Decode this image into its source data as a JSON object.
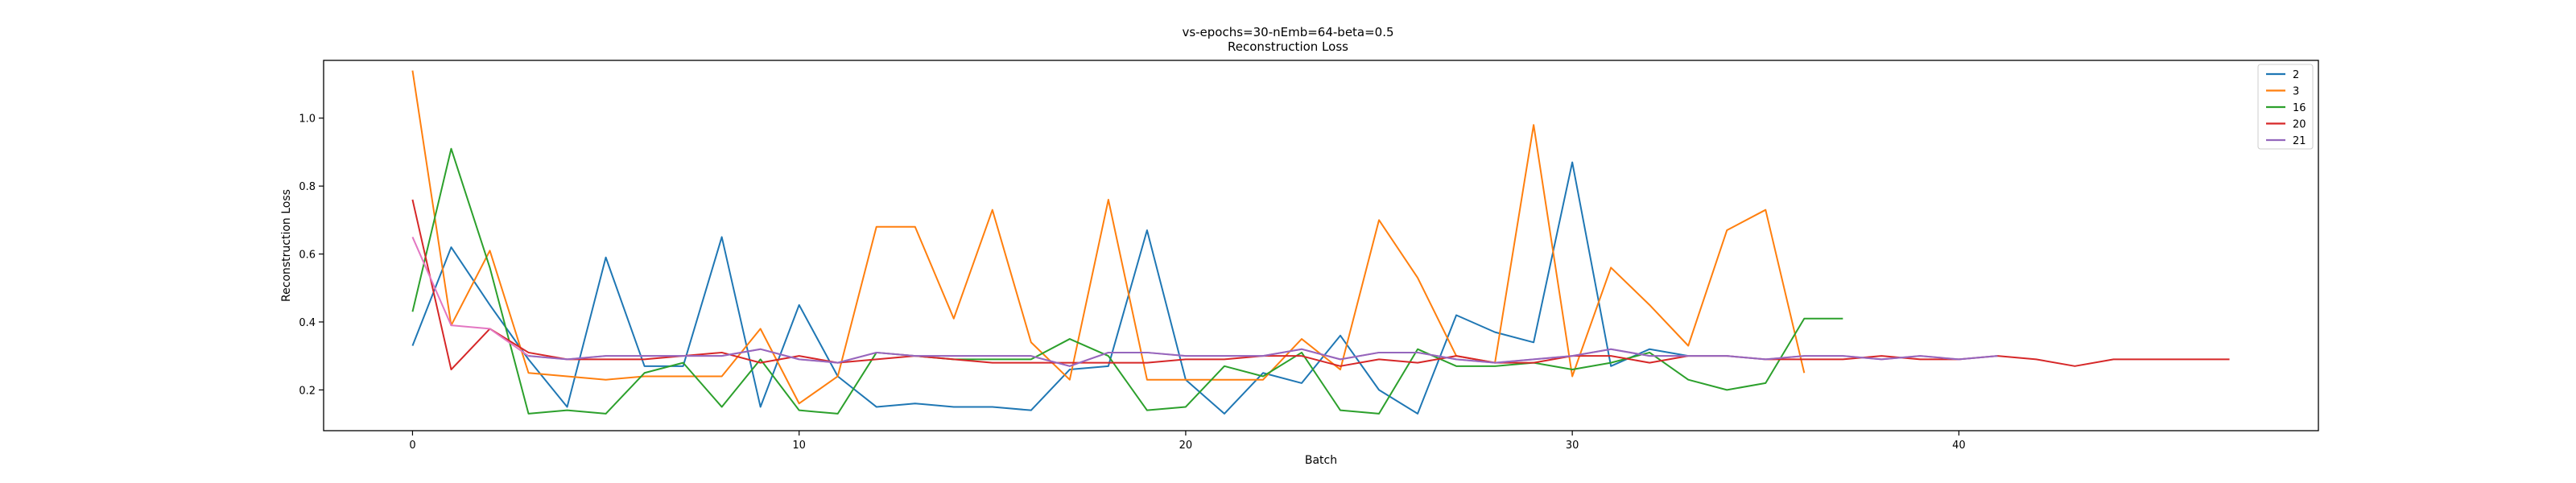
{
  "chart_data": {
    "type": "line",
    "title": "vs-epochs=30-nEmb=64-beta=0.5",
    "subtitle": "Reconstruction Loss",
    "xlabel": "Batch",
    "ylabel": "Reconstruction Loss",
    "xlim": [
      -2.3,
      49.3
    ],
    "ylim": [
      0.08,
      1.17
    ],
    "xticks": [
      0,
      10,
      20,
      30,
      40
    ],
    "yticks": [
      0.2,
      0.4,
      0.6,
      0.8,
      1.0
    ],
    "ytick_labels": [
      "0.2",
      "0.4",
      "0.6",
      "0.8",
      "1.0"
    ],
    "grid": false,
    "legend_position": "top-right",
    "series": [
      {
        "name": "2",
        "color": "#1f77b4",
        "values": [
          0.33,
          0.62,
          0.45,
          0.29,
          0.15,
          0.59,
          0.27,
          0.27,
          0.65,
          0.15,
          0.45,
          0.24,
          0.15,
          0.16,
          0.15,
          0.15,
          0.14,
          0.26,
          0.27,
          0.67,
          0.23,
          0.13,
          0.25,
          0.22,
          0.36,
          0.2,
          0.13,
          0.42,
          0.37,
          0.34,
          0.87,
          0.27,
          0.32,
          0.3
        ]
      },
      {
        "name": "3",
        "color": "#ff7f0e",
        "values": [
          1.14,
          0.39,
          0.61,
          0.25,
          0.24,
          0.23,
          0.24,
          0.24,
          0.24,
          0.38,
          0.16,
          0.24,
          0.68,
          0.68,
          0.41,
          0.73,
          0.34,
          0.23,
          0.76,
          0.23,
          0.23,
          0.23,
          0.23,
          0.35,
          0.26,
          0.7,
          0.53,
          0.3,
          0.28,
          0.98,
          0.24,
          0.56,
          0.45,
          0.33,
          0.67,
          0.73,
          0.25
        ]
      },
      {
        "name": "16",
        "color": "#2ca02c",
        "values": [
          0.43,
          0.91,
          0.56,
          0.13,
          0.14,
          0.13,
          0.25,
          0.28,
          0.15,
          0.29,
          0.14,
          0.13,
          0.31,
          0.3,
          0.29,
          0.29,
          0.29,
          0.35,
          0.3,
          0.14,
          0.15,
          0.27,
          0.24,
          0.31,
          0.14,
          0.13,
          0.32,
          0.27,
          0.27,
          0.28,
          0.26,
          0.28,
          0.31,
          0.23,
          0.2,
          0.22,
          0.41,
          0.41
        ]
      },
      {
        "name": "20",
        "color": "#d62728",
        "values": [
          0.76,
          0.26,
          0.38,
          0.31,
          0.29,
          0.29,
          0.29,
          0.3,
          0.31,
          0.28,
          0.3,
          0.28,
          0.29,
          0.3,
          0.29,
          0.28,
          0.28,
          0.28,
          0.28,
          0.28,
          0.29,
          0.29,
          0.3,
          0.3,
          0.27,
          0.29,
          0.28,
          0.3,
          0.28,
          0.28,
          0.3,
          0.3,
          0.28,
          0.3,
          0.3,
          0.29,
          0.29,
          0.29,
          0.3,
          0.29,
          0.29,
          0.3,
          0.29,
          0.27,
          0.29,
          0.29,
          0.29,
          0.29
        ]
      },
      {
        "name": "21",
        "color": "#e377c2",
        "secondary_color": "#9467bd",
        "values": [
          0.65,
          0.39,
          0.38,
          0.3,
          0.29,
          0.3,
          0.3,
          0.3,
          0.3,
          0.32,
          0.29,
          0.28,
          0.31,
          0.3,
          0.3,
          0.3,
          0.3,
          0.27,
          0.31,
          0.31,
          0.3,
          0.3,
          0.3,
          0.32,
          0.29,
          0.31,
          0.31,
          0.29,
          0.28,
          0.29,
          0.3,
          0.32,
          0.3,
          0.3,
          0.3,
          0.29,
          0.3,
          0.3,
          0.29,
          0.3,
          0.29,
          0.3
        ]
      }
    ]
  }
}
